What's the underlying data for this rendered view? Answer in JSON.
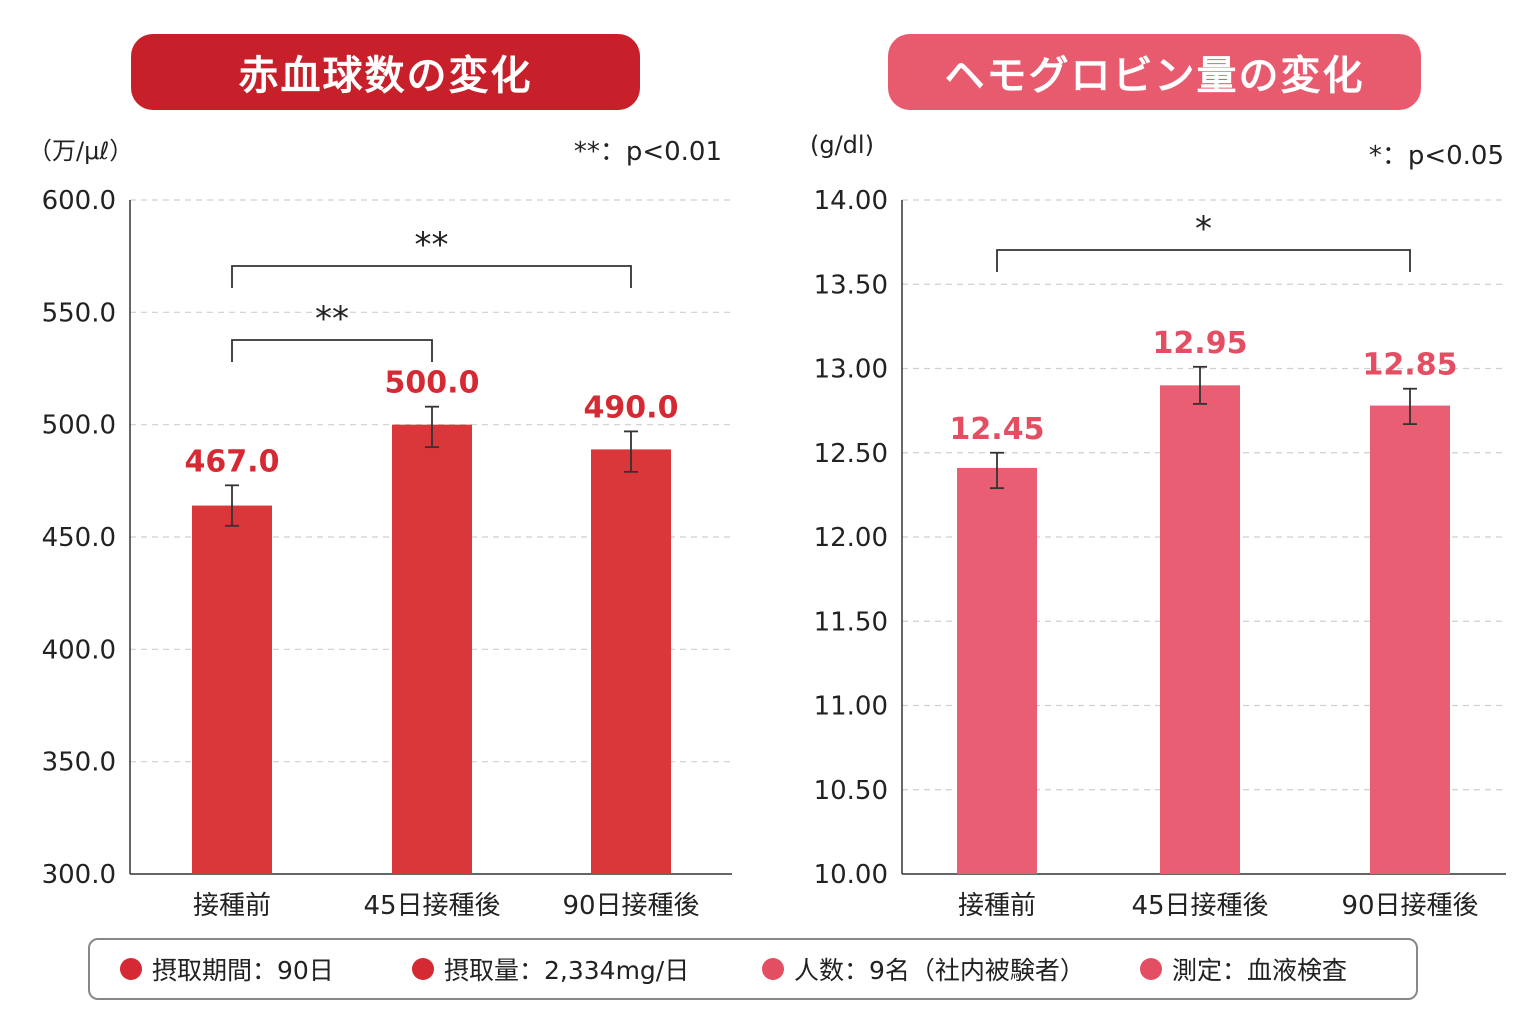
{
  "colors": {
    "red": "#d9373a",
    "pink": "#e95e72",
    "dark_red": "#c8202a",
    "value_red": "#d52a33",
    "value_pink": "#e34e63"
  },
  "panels": [
    {
      "title": "赤血球数の変化",
      "unit": "（万/μℓ）",
      "significance_note": "**：p<0.01"
    },
    {
      "title": "ヘモグロビン量の変化",
      "unit": "(g/dl)",
      "significance_note": "*：p<0.05"
    }
  ],
  "chart_data": [
    {
      "type": "bar",
      "title": "赤血球数の変化",
      "ylabel": "（万/μℓ）",
      "categories": [
        "接種前",
        "45日接種後",
        "90日接種後"
      ],
      "series": [
        {
          "values": [
            467.0,
            500.0,
            490.0
          ]
        }
      ],
      "value_labels": [
        "467.0",
        "500.0",
        "490.0"
      ],
      "error_bars": [
        {
          "low": 455,
          "high": 473
        },
        {
          "low": 490,
          "high": 508
        },
        {
          "low": 479,
          "high": 497
        }
      ],
      "bar_display_tops": [
        464,
        500,
        489
      ],
      "ylim": [
        300.0,
        600.0
      ],
      "yticks": [
        "300.0",
        "350.0",
        "400.0",
        "450.0",
        "500.0",
        "550.0",
        "600.0"
      ],
      "grid": true,
      "significance_brackets": [
        {
          "from": 0,
          "to": 1,
          "label": "**"
        },
        {
          "from": 0,
          "to": 2,
          "label": "**"
        }
      ],
      "color": "#d9373a"
    },
    {
      "type": "bar",
      "title": "ヘモグロビン量の変化",
      "ylabel": "(g/dl)",
      "categories": [
        "接種前",
        "45日接種後",
        "90日接種後"
      ],
      "series": [
        {
          "values": [
            12.45,
            12.95,
            12.85
          ]
        }
      ],
      "value_labels": [
        "12.45",
        "12.95",
        "12.85"
      ],
      "error_bars": [
        {
          "low": 12.29,
          "high": 12.5
        },
        {
          "low": 12.79,
          "high": 13.01
        },
        {
          "low": 12.67,
          "high": 12.88
        }
      ],
      "bar_display_tops": [
        12.41,
        12.9,
        12.78
      ],
      "ylim": [
        10.0,
        14.0
      ],
      "yticks": [
        "10.00",
        "10.50",
        "11.00",
        "11.50",
        "12.00",
        "12.50",
        "13.00",
        "13.50",
        "14.00"
      ],
      "grid": true,
      "significance_brackets": [
        {
          "from": 0,
          "to": 2,
          "label": "*"
        }
      ],
      "color": "#e95e72"
    }
  ],
  "legend": [
    {
      "text": "摂取期間：90日",
      "color": "#d52a33"
    },
    {
      "text": "摂取量：2,334mg/日",
      "color": "#d52a33"
    },
    {
      "text": "人数：9名（社内被験者）",
      "color": "#e34e63"
    },
    {
      "text": "測定：血液検査",
      "color": "#e34e63"
    }
  ]
}
